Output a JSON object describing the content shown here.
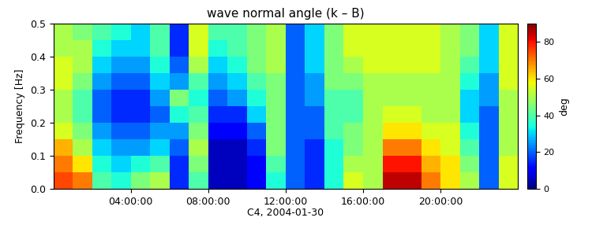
{
  "chart_data": {
    "type": "heatmap",
    "title": "wave normal angle (k – B)",
    "x_label": "C4, 2004-01-30",
    "y_label": "Frequency [Hz]",
    "xlim": [
      0,
      24
    ],
    "xticks": [
      {
        "value": 4,
        "label": "04:00:00"
      },
      {
        "value": 8,
        "label": "08:00:00"
      },
      {
        "value": 12,
        "label": "12:00:00"
      },
      {
        "value": 16,
        "label": "16:00:00"
      },
      {
        "value": 20,
        "label": "20:00:00"
      }
    ],
    "ylim": [
      0,
      0.5
    ],
    "yticks": [
      {
        "value": 0,
        "label": "0.0"
      },
      0.1,
      0.2,
      0.3,
      0.4,
      0.5
    ],
    "x_edges": [
      0,
      1,
      2,
      3,
      4,
      5,
      6,
      7,
      8,
      9,
      10,
      11,
      12,
      13,
      14,
      15,
      16,
      17,
      18,
      19,
      20,
      21,
      22,
      23,
      24
    ],
    "y_edges": [
      0,
      0.05,
      0.1,
      0.15,
      0.2,
      0.25,
      0.3,
      0.35,
      0.4,
      0.45,
      0.5
    ],
    "cells": [
      [
        75,
        70,
        65,
        55,
        50,
        50,
        55,
        55,
        50,
        50
      ],
      [
        70,
        60,
        50,
        45,
        40,
        40,
        45,
        50,
        50,
        45
      ],
      [
        40,
        35,
        30,
        25,
        20,
        20,
        25,
        30,
        35,
        40
      ],
      [
        35,
        30,
        25,
        20,
        15,
        15,
        20,
        25,
        30,
        35
      ],
      [
        45,
        35,
        25,
        20,
        15,
        15,
        20,
        25,
        30,
        30
      ],
      [
        50,
        40,
        30,
        25,
        20,
        25,
        30,
        35,
        40,
        40
      ],
      [
        15,
        15,
        20,
        25,
        35,
        45,
        25,
        20,
        15,
        15
      ],
      [
        40,
        45,
        50,
        45,
        40,
        35,
        40,
        50,
        55,
        55
      ],
      [
        5,
        5,
        5,
        10,
        15,
        20,
        25,
        30,
        35,
        40
      ],
      [
        5,
        5,
        5,
        10,
        15,
        25,
        30,
        35,
        40,
        40
      ],
      [
        10,
        10,
        15,
        20,
        30,
        35,
        40,
        45,
        45,
        45
      ],
      [
        35,
        40,
        45,
        45,
        45,
        45,
        45,
        50,
        50,
        50
      ],
      [
        20,
        20,
        20,
        20,
        20,
        20,
        20,
        20,
        20,
        20
      ],
      [
        15,
        15,
        15,
        20,
        20,
        25,
        25,
        30,
        30,
        30
      ],
      [
        35,
        35,
        35,
        40,
        40,
        40,
        45,
        45,
        45,
        45
      ],
      [
        55,
        50,
        45,
        45,
        40,
        40,
        45,
        50,
        55,
        55
      ],
      [
        50,
        50,
        50,
        50,
        50,
        50,
        50,
        55,
        55,
        55
      ],
      [
        85,
        80,
        70,
        60,
        55,
        50,
        50,
        55,
        55,
        55
      ],
      [
        85,
        80,
        70,
        60,
        55,
        50,
        50,
        55,
        55,
        55
      ],
      [
        70,
        65,
        60,
        55,
        50,
        50,
        50,
        55,
        55,
        55
      ],
      [
        60,
        60,
        55,
        55,
        50,
        50,
        50,
        50,
        50,
        50
      ],
      [
        50,
        45,
        40,
        35,
        30,
        30,
        35,
        40,
        45,
        45
      ],
      [
        20,
        20,
        20,
        20,
        20,
        25,
        25,
        30,
        30,
        30
      ],
      [
        55,
        55,
        50,
        50,
        50,
        50,
        55,
        55,
        55,
        55
      ]
    ],
    "colorbar": {
      "range": [
        0,
        90
      ],
      "ticks": [
        0,
        20,
        40,
        60,
        80
      ],
      "label": "deg"
    }
  }
}
